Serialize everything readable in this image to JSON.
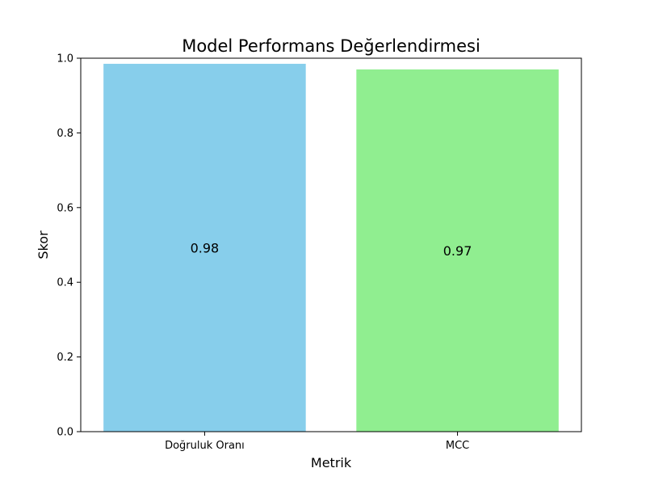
{
  "chart_data": {
    "type": "bar",
    "title": "Model Performans Değerlendirmesi",
    "xlabel": "Metrik",
    "ylabel": "Skor",
    "categories": [
      "Doğruluk Oranı",
      "MCC"
    ],
    "values": [
      0.985,
      0.97
    ],
    "data_labels": [
      "0.98",
      "0.97"
    ],
    "colors": [
      "#87ceeb",
      "#90ee90"
    ],
    "ylim": [
      0,
      1.0
    ],
    "yticks": [
      "0.0",
      "0.2",
      "0.4",
      "0.6",
      "0.8",
      "1.0"
    ],
    "grid": false,
    "legend": "none"
  }
}
